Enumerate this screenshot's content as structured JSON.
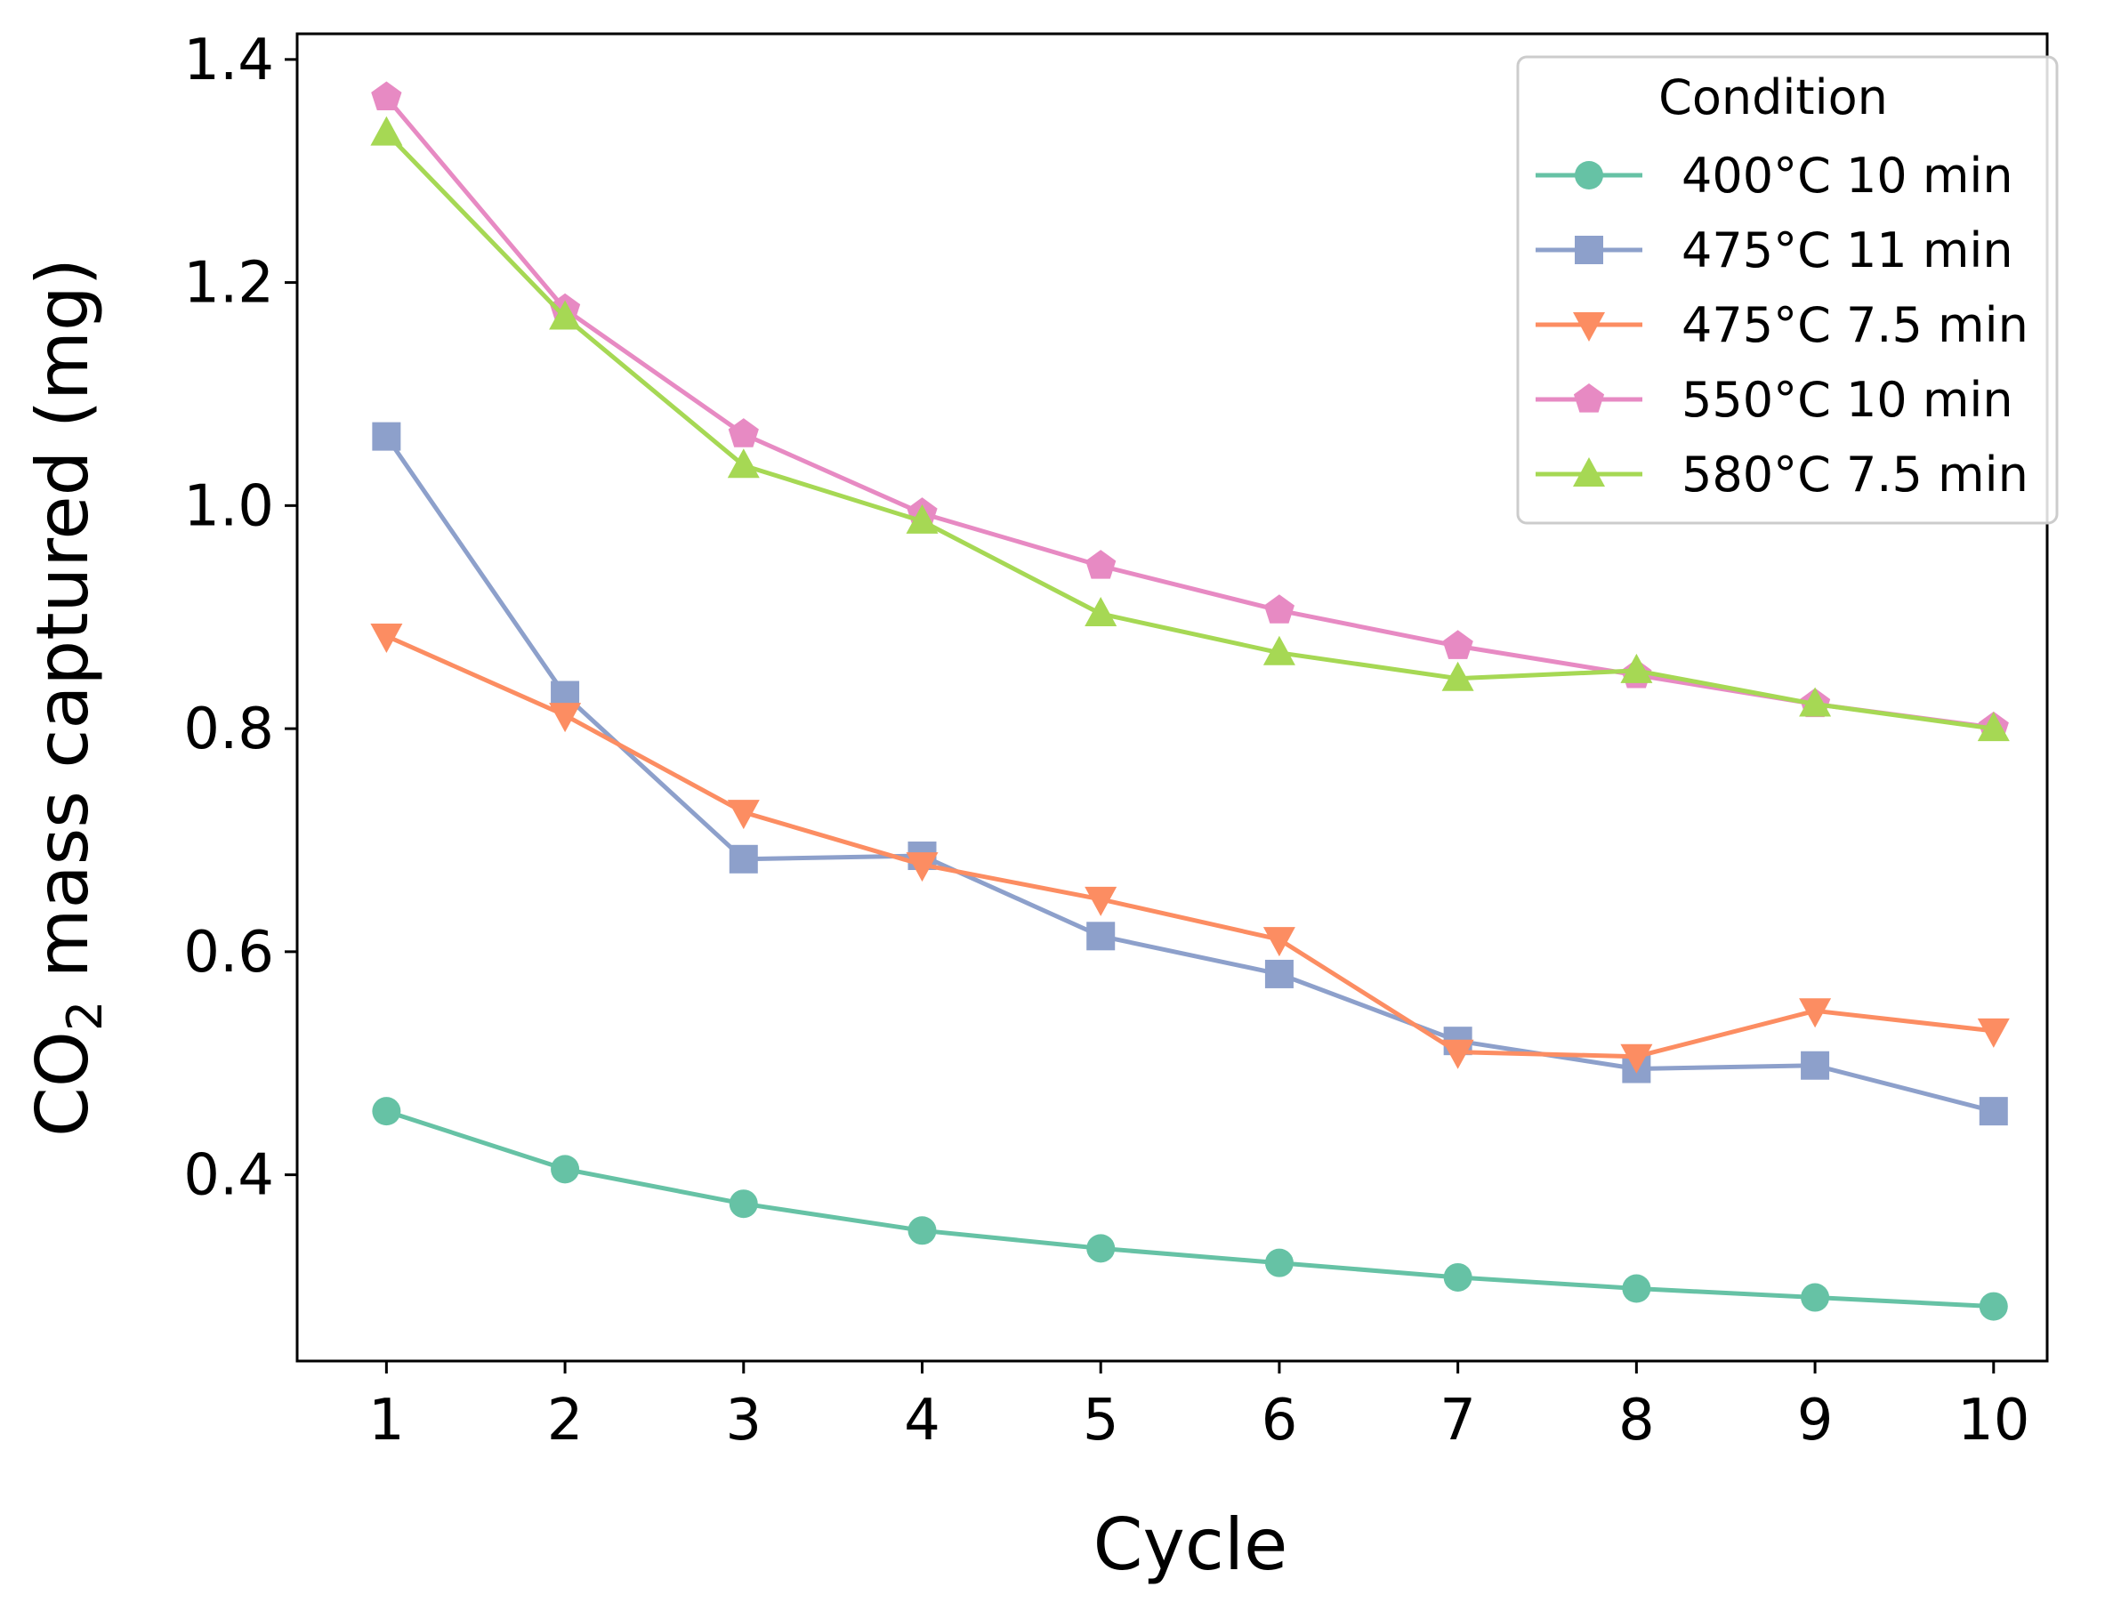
{
  "chart_data": {
    "type": "line",
    "title": "",
    "xlabel": "Cycle",
    "ylabel_main": "CO",
    "ylabel_sub": "2",
    "ylabel_rest": " mass captured (mg)",
    "x": [
      1,
      2,
      3,
      4,
      5,
      6,
      7,
      8,
      9,
      10
    ],
    "xlim": [
      0.5,
      10.3
    ],
    "ylim": [
      0.233,
      1.423
    ],
    "xticks": [
      "1",
      "2",
      "3",
      "4",
      "5",
      "6",
      "7",
      "8",
      "9",
      "10"
    ],
    "yticks": [
      "0.4",
      "0.6",
      "0.8",
      "1.0",
      "1.2",
      "1.4"
    ],
    "grid": false,
    "legend": {
      "title": "Condition",
      "placement": "top-right"
    },
    "series": [
      {
        "name": "400°C 10 min",
        "color": "#66c2a5",
        "marker": "circle",
        "values": [
          0.457,
          0.405,
          0.374,
          0.35,
          0.334,
          0.321,
          0.308,
          0.298,
          0.29,
          0.282
        ]
      },
      {
        "name": "475°C 11 min",
        "color": "#8da0cb",
        "marker": "square",
        "values": [
          1.062,
          0.83,
          0.683,
          0.686,
          0.614,
          0.58,
          0.52,
          0.495,
          0.498,
          0.457
        ]
      },
      {
        "name": "475°C 7.5 min",
        "color": "#fc8d62",
        "marker": "triangle-down",
        "values": [
          0.883,
          0.812,
          0.725,
          0.678,
          0.647,
          0.611,
          0.51,
          0.506,
          0.547,
          0.529
        ]
      },
      {
        "name": "550°C 10 min",
        "color": "#e78ac3",
        "marker": "pentagon",
        "values": [
          1.366,
          1.176,
          1.064,
          0.993,
          0.946,
          0.906,
          0.874,
          0.848,
          0.822,
          0.801
        ]
      },
      {
        "name": "580°C 7.5 min",
        "color": "#a6d854",
        "marker": "triangle-up",
        "values": [
          1.334,
          1.169,
          1.036,
          0.986,
          0.903,
          0.868,
          0.845,
          0.852,
          0.822,
          0.8
        ]
      }
    ]
  }
}
